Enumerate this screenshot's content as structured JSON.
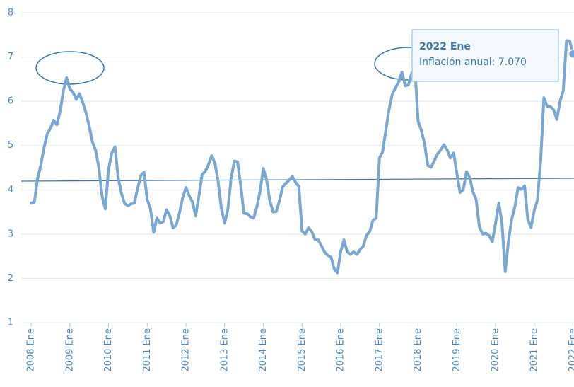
{
  "chart_data": {
    "type": "line",
    "categories": [
      "2008 Ene",
      null,
      null,
      null,
      null,
      null,
      null,
      null,
      null,
      null,
      null,
      null,
      "2009 Ene",
      null,
      null,
      null,
      null,
      null,
      null,
      null,
      null,
      null,
      null,
      null,
      "2010 Ene",
      null,
      null,
      null,
      null,
      null,
      null,
      null,
      null,
      null,
      null,
      null,
      "2011 Ene",
      null,
      null,
      null,
      null,
      null,
      null,
      null,
      null,
      null,
      null,
      null,
      "2012 Ene",
      null,
      null,
      null,
      null,
      null,
      null,
      null,
      null,
      null,
      null,
      null,
      "2013 Ene",
      null,
      null,
      null,
      null,
      null,
      null,
      null,
      null,
      null,
      null,
      null,
      "2014 Ene",
      null,
      null,
      null,
      null,
      null,
      null,
      null,
      null,
      null,
      null,
      null,
      "2015 Ene",
      null,
      null,
      null,
      null,
      null,
      null,
      null,
      null,
      null,
      null,
      null,
      "2016 Ene",
      null,
      null,
      null,
      null,
      null,
      null,
      null,
      null,
      null,
      null,
      null,
      "2017 Ene",
      null,
      null,
      null,
      null,
      null,
      null,
      null,
      null,
      null,
      null,
      null,
      "2018 Ene",
      null,
      null,
      null,
      null,
      null,
      null,
      null,
      null,
      null,
      null,
      null,
      "2019 Ene",
      null,
      null,
      null,
      null,
      null,
      null,
      null,
      null,
      null,
      null,
      null,
      "2020 Ene",
      null,
      null,
      null,
      null,
      null,
      null,
      null,
      null,
      null,
      null,
      null,
      "2021 Ene",
      null,
      null,
      null,
      null,
      null,
      null,
      null,
      null,
      null,
      null,
      null,
      "2022 Ene"
    ],
    "values": [
      3.7,
      3.72,
      4.25,
      4.55,
      4.95,
      5.26,
      5.39,
      5.57,
      5.47,
      5.78,
      6.23,
      6.53,
      6.28,
      6.2,
      6.04,
      6.17,
      5.98,
      5.74,
      5.44,
      5.08,
      4.89,
      4.5,
      3.86,
      3.57,
      4.46,
      4.83,
      4.97,
      4.27,
      3.92,
      3.69,
      3.64,
      3.68,
      3.7,
      4.02,
      4.32,
      4.4,
      3.78,
      3.57,
      3.04,
      3.36,
      3.25,
      3.28,
      3.55,
      3.42,
      3.14,
      3.2,
      3.48,
      3.82,
      4.05,
      3.87,
      3.73,
      3.41,
      3.85,
      4.34,
      4.42,
      4.57,
      4.77,
      4.6,
      4.18,
      3.57,
      3.25,
      3.55,
      4.25,
      4.65,
      4.63,
      4.09,
      3.47,
      3.46,
      3.39,
      3.36,
      3.62,
      3.97,
      4.48,
      4.23,
      3.76,
      3.5,
      3.51,
      3.75,
      4.07,
      4.15,
      4.22,
      4.3,
      4.17,
      4.08,
      3.07,
      3.0,
      3.14,
      3.06,
      2.88,
      2.87,
      2.74,
      2.59,
      2.52,
      2.48,
      2.21,
      2.13,
      2.61,
      2.87,
      2.6,
      2.54,
      2.6,
      2.54,
      2.65,
      2.73,
      2.97,
      3.06,
      3.31,
      3.36,
      4.72,
      4.86,
      5.35,
      5.82,
      6.16,
      6.31,
      6.44,
      6.66,
      6.35,
      6.37,
      6.63,
      6.77,
      5.55,
      5.34,
      5.04,
      4.55,
      4.51,
      4.65,
      4.81,
      4.9,
      5.02,
      4.9,
      4.72,
      4.83,
      4.37,
      3.94,
      4.0,
      4.41,
      4.28,
      3.95,
      3.78,
      3.16,
      3.0,
      3.02,
      2.97,
      2.83,
      3.24,
      3.7,
      3.25,
      2.15,
      2.84,
      3.33,
      3.62,
      4.05,
      4.01,
      4.09,
      3.33,
      3.15,
      3.54,
      3.76,
      4.67,
      6.08,
      5.89,
      5.88,
      5.81,
      5.59,
      6.0,
      6.24,
      7.37,
      7.36,
      7.07
    ],
    "color": "#7aa6d2",
    "ylim": [
      1,
      8
    ],
    "yticks": [
      1,
      2,
      3,
      4,
      5,
      6,
      7,
      8
    ],
    "grid": true,
    "tooltip": {
      "title": "2022 Ene",
      "text": "Inflación anual: 7.070"
    }
  }
}
